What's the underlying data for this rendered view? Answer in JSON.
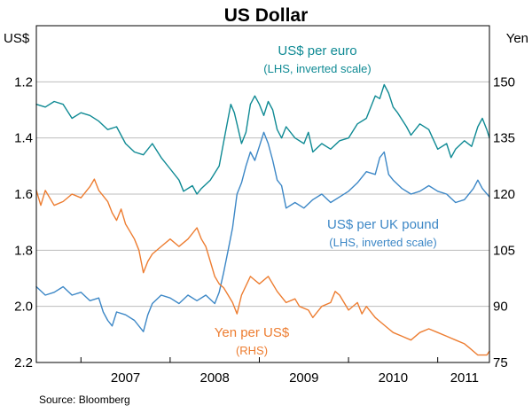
{
  "chart_data": {
    "type": "line",
    "title": "US Dollar",
    "left_axis": {
      "unit": "US$",
      "inverted": true,
      "range": [
        1.0,
        2.2
      ],
      "ticks": [
        {
          "value": 1.2,
          "label": "1.2"
        },
        {
          "value": 1.4,
          "label": "1.4"
        },
        {
          "value": 1.6,
          "label": "1.6"
        },
        {
          "value": 1.8,
          "label": "1.8"
        },
        {
          "value": 2.0,
          "label": "2.0"
        },
        {
          "value": 2.2,
          "label": "2.2"
        }
      ]
    },
    "right_axis": {
      "unit": "Yen",
      "range": [
        75,
        165
      ],
      "ticks": [
        {
          "value": 150,
          "label": "150"
        },
        {
          "value": 135,
          "label": "135"
        },
        {
          "value": 120,
          "label": "120"
        },
        {
          "value": 105,
          "label": "105"
        },
        {
          "value": 90,
          "label": "90"
        },
        {
          "value": 75,
          "label": "75"
        }
      ]
    },
    "x_axis": {
      "range": [
        2006.5,
        2011.58
      ],
      "year_boundaries": [
        2007,
        2008,
        2009,
        2010,
        2011
      ],
      "labels": [
        {
          "x": 2007.5,
          "label": "2007"
        },
        {
          "x": 2008.5,
          "label": "2008"
        },
        {
          "x": 2009.5,
          "label": "2009"
        },
        {
          "x": 2010.5,
          "label": "2010"
        },
        {
          "x": 2011.3,
          "label": "2011"
        }
      ]
    },
    "series": [
      {
        "name": "US$ per euro",
        "note": "(LHS, inverted scale)",
        "axis": "left",
        "color": "#0f8a94",
        "points": [
          [
            2006.5,
            1.28
          ],
          [
            2006.6,
            1.29
          ],
          [
            2006.7,
            1.27
          ],
          [
            2006.8,
            1.28
          ],
          [
            2006.9,
            1.33
          ],
          [
            2007.0,
            1.31
          ],
          [
            2007.1,
            1.32
          ],
          [
            2007.2,
            1.34
          ],
          [
            2007.3,
            1.37
          ],
          [
            2007.4,
            1.36
          ],
          [
            2007.5,
            1.42
          ],
          [
            2007.6,
            1.45
          ],
          [
            2007.7,
            1.46
          ],
          [
            2007.8,
            1.42
          ],
          [
            2007.9,
            1.47
          ],
          [
            2008.0,
            1.51
          ],
          [
            2008.1,
            1.55
          ],
          [
            2008.15,
            1.59
          ],
          [
            2008.25,
            1.57
          ],
          [
            2008.3,
            1.6
          ],
          [
            2008.35,
            1.58
          ],
          [
            2008.45,
            1.55
          ],
          [
            2008.55,
            1.5
          ],
          [
            2008.62,
            1.38
          ],
          [
            2008.68,
            1.28
          ],
          [
            2008.72,
            1.31
          ],
          [
            2008.75,
            1.35
          ],
          [
            2008.8,
            1.42
          ],
          [
            2008.85,
            1.38
          ],
          [
            2008.9,
            1.28
          ],
          [
            2008.95,
            1.25
          ],
          [
            2009.0,
            1.28
          ],
          [
            2009.05,
            1.32
          ],
          [
            2009.1,
            1.27
          ],
          [
            2009.15,
            1.3
          ],
          [
            2009.2,
            1.37
          ],
          [
            2009.25,
            1.4
          ],
          [
            2009.3,
            1.36
          ],
          [
            2009.4,
            1.4
          ],
          [
            2009.5,
            1.42
          ],
          [
            2009.55,
            1.38
          ],
          [
            2009.6,
            1.45
          ],
          [
            2009.7,
            1.42
          ],
          [
            2009.8,
            1.44
          ],
          [
            2009.9,
            1.41
          ],
          [
            2010.0,
            1.4
          ],
          [
            2010.1,
            1.35
          ],
          [
            2010.2,
            1.33
          ],
          [
            2010.3,
            1.25
          ],
          [
            2010.35,
            1.26
          ],
          [
            2010.4,
            1.21
          ],
          [
            2010.45,
            1.24
          ],
          [
            2010.5,
            1.29
          ],
          [
            2010.55,
            1.31
          ],
          [
            2010.65,
            1.36
          ],
          [
            2010.7,
            1.39
          ],
          [
            2010.8,
            1.35
          ],
          [
            2010.9,
            1.37
          ],
          [
            2011.0,
            1.44
          ],
          [
            2011.1,
            1.42
          ],
          [
            2011.15,
            1.47
          ],
          [
            2011.2,
            1.44
          ],
          [
            2011.3,
            1.41
          ],
          [
            2011.38,
            1.43
          ],
          [
            2011.45,
            1.36
          ],
          [
            2011.5,
            1.33
          ],
          [
            2011.55,
            1.37
          ],
          [
            2011.58,
            1.4
          ]
        ]
      },
      {
        "name": "US$ per UK pound",
        "note": "(LHS, inverted scale)",
        "axis": "left",
        "color": "#3c87c6",
        "points": [
          [
            2006.5,
            1.93
          ],
          [
            2006.6,
            1.96
          ],
          [
            2006.7,
            1.95
          ],
          [
            2006.8,
            1.93
          ],
          [
            2006.9,
            1.96
          ],
          [
            2007.0,
            1.95
          ],
          [
            2007.1,
            1.98
          ],
          [
            2007.2,
            1.97
          ],
          [
            2007.25,
            2.02
          ],
          [
            2007.3,
            2.05
          ],
          [
            2007.35,
            2.07
          ],
          [
            2007.4,
            2.02
          ],
          [
            2007.5,
            2.03
          ],
          [
            2007.6,
            2.05
          ],
          [
            2007.7,
            2.09
          ],
          [
            2007.75,
            2.03
          ],
          [
            2007.8,
            1.99
          ],
          [
            2007.9,
            1.96
          ],
          [
            2008.0,
            1.97
          ],
          [
            2008.1,
            1.99
          ],
          [
            2008.2,
            1.96
          ],
          [
            2008.3,
            1.98
          ],
          [
            2008.4,
            1.96
          ],
          [
            2008.5,
            1.99
          ],
          [
            2008.55,
            1.95
          ],
          [
            2008.6,
            1.88
          ],
          [
            2008.65,
            1.8
          ],
          [
            2008.7,
            1.72
          ],
          [
            2008.75,
            1.6
          ],
          [
            2008.8,
            1.56
          ],
          [
            2008.85,
            1.5
          ],
          [
            2008.9,
            1.45
          ],
          [
            2008.95,
            1.48
          ],
          [
            2009.0,
            1.43
          ],
          [
            2009.05,
            1.38
          ],
          [
            2009.1,
            1.42
          ],
          [
            2009.15,
            1.48
          ],
          [
            2009.2,
            1.55
          ],
          [
            2009.25,
            1.57
          ],
          [
            2009.3,
            1.65
          ],
          [
            2009.4,
            1.63
          ],
          [
            2009.5,
            1.65
          ],
          [
            2009.6,
            1.62
          ],
          [
            2009.7,
            1.6
          ],
          [
            2009.8,
            1.63
          ],
          [
            2009.9,
            1.61
          ],
          [
            2010.0,
            1.59
          ],
          [
            2010.1,
            1.56
          ],
          [
            2010.2,
            1.52
          ],
          [
            2010.3,
            1.53
          ],
          [
            2010.35,
            1.47
          ],
          [
            2010.4,
            1.45
          ],
          [
            2010.45,
            1.53
          ],
          [
            2010.5,
            1.55
          ],
          [
            2010.6,
            1.58
          ],
          [
            2010.7,
            1.6
          ],
          [
            2010.8,
            1.59
          ],
          [
            2010.9,
            1.57
          ],
          [
            2011.0,
            1.59
          ],
          [
            2011.1,
            1.6
          ],
          [
            2011.2,
            1.63
          ],
          [
            2011.3,
            1.62
          ],
          [
            2011.4,
            1.58
          ],
          [
            2011.45,
            1.55
          ],
          [
            2011.5,
            1.58
          ],
          [
            2011.58,
            1.61
          ]
        ]
      },
      {
        "name": "Yen per US$",
        "note": "(RHS)",
        "axis": "right",
        "color": "#ed7d31",
        "points": [
          [
            2006.5,
            121
          ],
          [
            2006.55,
            117
          ],
          [
            2006.6,
            121
          ],
          [
            2006.7,
            117
          ],
          [
            2006.8,
            118
          ],
          [
            2006.9,
            120
          ],
          [
            2007.0,
            119
          ],
          [
            2007.1,
            122
          ],
          [
            2007.15,
            124
          ],
          [
            2007.2,
            121
          ],
          [
            2007.3,
            118
          ],
          [
            2007.35,
            115
          ],
          [
            2007.4,
            113
          ],
          [
            2007.45,
            116
          ],
          [
            2007.5,
            112
          ],
          [
            2007.55,
            110
          ],
          [
            2007.6,
            108
          ],
          [
            2007.65,
            105
          ],
          [
            2007.7,
            99
          ],
          [
            2007.75,
            102
          ],
          [
            2007.8,
            104
          ],
          [
            2007.9,
            106
          ],
          [
            2008.0,
            108
          ],
          [
            2008.1,
            106
          ],
          [
            2008.2,
            108
          ],
          [
            2008.3,
            111
          ],
          [
            2008.35,
            108
          ],
          [
            2008.4,
            106
          ],
          [
            2008.45,
            102
          ],
          [
            2008.5,
            98
          ],
          [
            2008.55,
            96
          ],
          [
            2008.6,
            95
          ],
          [
            2008.65,
            93
          ],
          [
            2008.7,
            91
          ],
          [
            2008.75,
            88
          ],
          [
            2008.8,
            93
          ],
          [
            2008.9,
            98
          ],
          [
            2008.95,
            97
          ],
          [
            2009.0,
            96
          ],
          [
            2009.1,
            98
          ],
          [
            2009.2,
            94
          ],
          [
            2009.3,
            91
          ],
          [
            2009.4,
            92
          ],
          [
            2009.45,
            90
          ],
          [
            2009.55,
            89
          ],
          [
            2009.6,
            87
          ],
          [
            2009.7,
            90
          ],
          [
            2009.8,
            91
          ],
          [
            2009.85,
            94
          ],
          [
            2009.9,
            93
          ],
          [
            2010.0,
            89
          ],
          [
            2010.1,
            91
          ],
          [
            2010.15,
            88
          ],
          [
            2010.2,
            90
          ],
          [
            2010.3,
            87
          ],
          [
            2010.35,
            86
          ],
          [
            2010.45,
            84
          ],
          [
            2010.5,
            83
          ],
          [
            2010.6,
            82
          ],
          [
            2010.7,
            81
          ],
          [
            2010.8,
            83
          ],
          [
            2010.9,
            84
          ],
          [
            2011.0,
            83
          ],
          [
            2011.1,
            82
          ],
          [
            2011.2,
            81
          ],
          [
            2011.3,
            80
          ],
          [
            2011.35,
            79
          ],
          [
            2011.45,
            77
          ],
          [
            2011.55,
            77
          ],
          [
            2011.58,
            78
          ]
        ]
      }
    ],
    "annotations": [
      {
        "series": "US$ per euro",
        "lines": [
          "US$ per euro",
          "(LHS, inverted scale)"
        ]
      },
      {
        "series": "US$ per UK pound",
        "lines": [
          "US$ per UK pound",
          "(LHS, inverted scale)"
        ]
      },
      {
        "series": "Yen per US$",
        "lines": [
          "Yen per US$",
          "(RHS)"
        ]
      }
    ],
    "source": "Source: Bloomberg"
  }
}
